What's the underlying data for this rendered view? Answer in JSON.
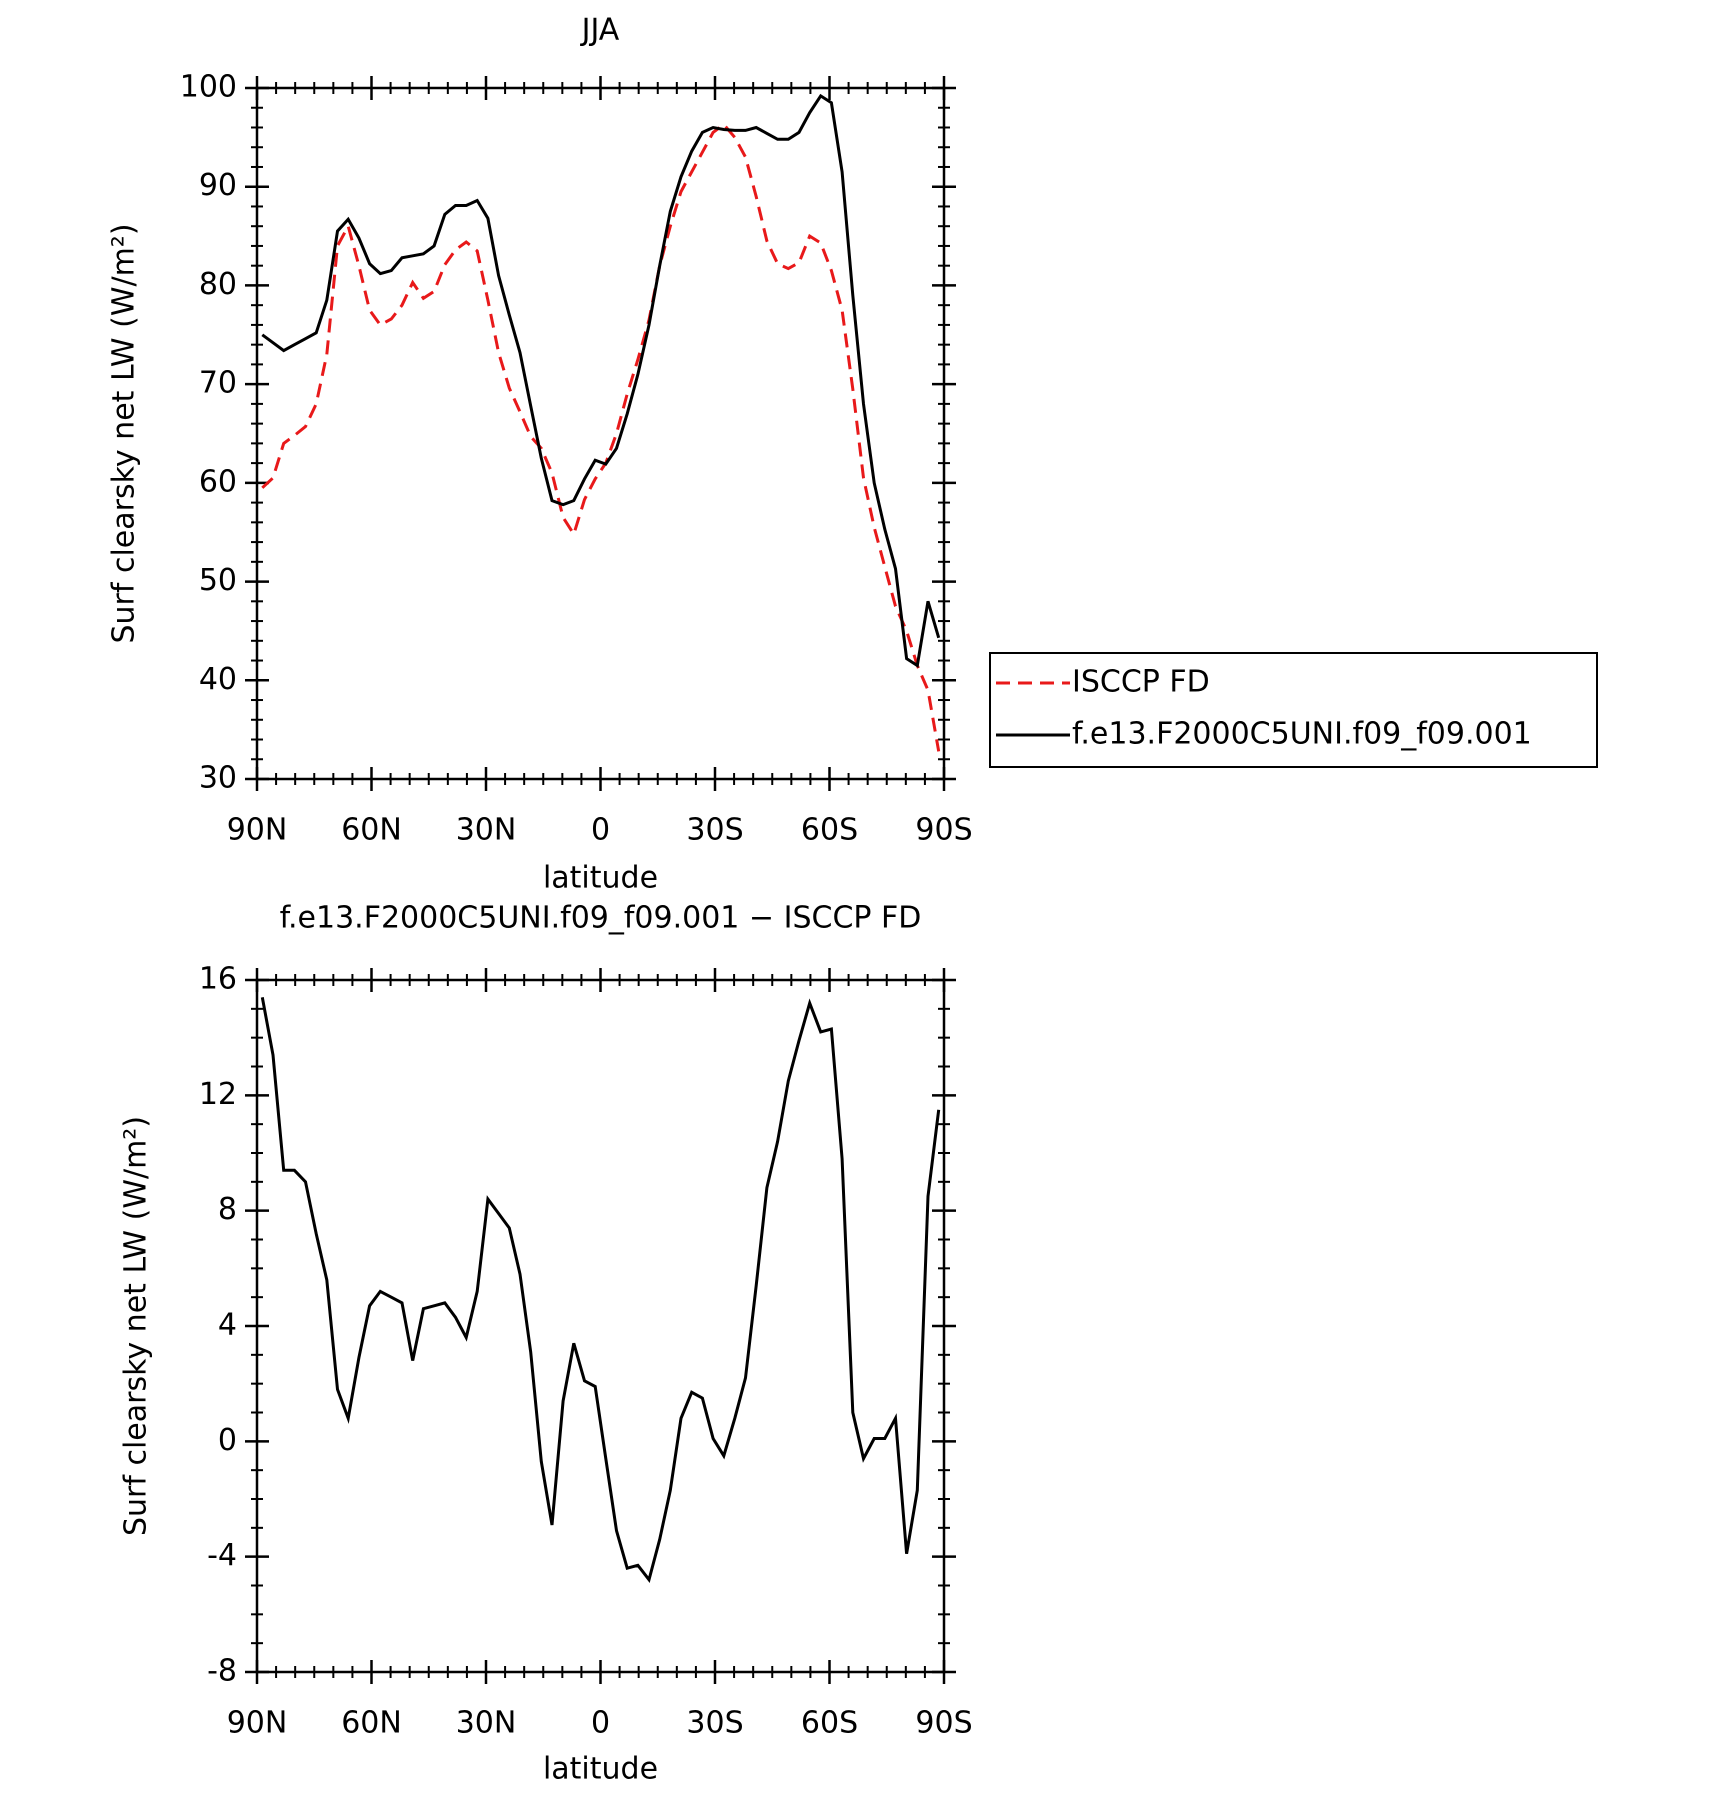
{
  "chart_data": [
    {
      "type": "line",
      "title": "JJA",
      "x_label": "latitude",
      "y_label": "Surf clearsky net LW (W/m²)",
      "x": [
        88.6,
        85.8,
        83.0,
        80.2,
        77.3,
        74.5,
        71.7,
        68.9,
        66.1,
        63.3,
        60.5,
        57.7,
        54.8,
        52.0,
        49.2,
        46.4,
        43.6,
        40.8,
        38.0,
        35.2,
        32.3,
        29.5,
        26.7,
        23.9,
        21.1,
        18.3,
        15.5,
        12.7,
        9.8,
        7.0,
        4.2,
        1.4,
        -1.4,
        -4.2,
        -7.0,
        -9.8,
        -12.7,
        -15.5,
        -18.3,
        -21.1,
        -23.9,
        -26.7,
        -29.5,
        -32.3,
        -35.2,
        -38.0,
        -40.8,
        -43.6,
        -46.4,
        -49.2,
        -52.0,
        -54.8,
        -57.7,
        -60.5,
        -63.3,
        -66.1,
        -68.9,
        -71.7,
        -74.5,
        -77.3,
        -80.2,
        -83.0,
        -85.8,
        -88.6
      ],
      "series": [
        {
          "name": "ISCCP FD",
          "color": "#e8191a",
          "style": "dashed",
          "values": [
            59.5,
            60.5,
            64.0,
            64.8,
            65.7,
            68.0,
            73.0,
            84.0,
            86.0,
            82.0,
            77.5,
            76.0,
            76.6,
            78.0,
            80.3,
            78.7,
            79.4,
            82.1,
            83.6,
            84.4,
            83.5,
            78.5,
            73.2,
            69.6,
            67.2,
            64.7,
            63.5,
            61.0,
            56.5,
            54.8,
            58.3,
            60.4,
            62.0,
            65.0,
            69.0,
            72.5,
            76.5,
            82.0,
            86.0,
            89.5,
            91.5,
            93.5,
            95.5,
            96.3,
            95.0,
            93.0,
            89.0,
            84.5,
            82.2,
            81.7,
            82.3,
            85.0,
            84.3,
            81.5,
            77.5,
            69.5,
            60.5,
            55.5,
            51.5,
            47.5,
            45.0,
            41.5,
            39.0,
            32.8
          ]
        },
        {
          "name": "f.e13.F2000C5UNI.f09_f09.001",
          "color": "#000000",
          "style": "solid",
          "values": [
            75.0,
            74.2,
            73.4,
            74.0,
            74.6,
            75.2,
            78.5,
            85.5,
            86.7,
            84.8,
            82.2,
            81.2,
            81.5,
            82.8,
            83.0,
            83.2,
            84.0,
            87.2,
            88.1,
            88.1,
            88.6,
            86.8,
            81.0,
            77.0,
            73.2,
            67.8,
            62.5,
            58.2,
            57.8,
            58.2,
            60.4,
            62.3,
            61.9,
            63.5,
            67.0,
            71.0,
            76.0,
            82.0,
            87.5,
            91.0,
            93.6,
            95.5,
            96.0,
            95.8,
            95.7,
            95.7,
            96.0,
            95.4,
            94.8,
            94.8,
            95.5,
            97.5,
            99.2,
            98.5,
            91.5,
            79.0,
            68.0,
            60.0,
            55.3,
            51.3,
            42.2,
            41.5,
            48.0,
            44.3
          ]
        }
      ],
      "xlim": [
        90,
        -90
      ],
      "xticks": [
        {
          "value": 90,
          "label": "90N"
        },
        {
          "value": 60,
          "label": "60N"
        },
        {
          "value": 30,
          "label": "30N"
        },
        0,
        {
          "value": -30,
          "label": "30S"
        },
        {
          "value": -60,
          "label": "60S"
        },
        {
          "value": -90,
          "label": "90S"
        }
      ],
      "ylim": [
        30,
        100
      ],
      "yticks": [
        30,
        40,
        50,
        60,
        70,
        80,
        90,
        100
      ],
      "legend": "right"
    },
    {
      "type": "line",
      "title": "f.e13.F2000C5UNI.f09_f09.001 − ISCCP FD",
      "x_label": "latitude",
      "y_label": "Surf clearsky net LW (W/m²)",
      "x": [
        88.6,
        85.8,
        83.0,
        80.2,
        77.3,
        74.5,
        71.7,
        68.9,
        66.1,
        63.3,
        60.5,
        57.7,
        54.8,
        52.0,
        49.2,
        46.4,
        43.6,
        40.8,
        38.0,
        35.2,
        32.3,
        29.5,
        26.7,
        23.9,
        21.1,
        18.3,
        15.5,
        12.7,
        9.8,
        7.0,
        4.2,
        1.4,
        -1.4,
        -4.2,
        -7.0,
        -9.8,
        -12.7,
        -15.5,
        -18.3,
        -21.1,
        -23.9,
        -26.7,
        -29.5,
        -32.3,
        -35.2,
        -38.0,
        -40.8,
        -43.6,
        -46.4,
        -49.2,
        -52.0,
        -54.8,
        -57.7,
        -60.5,
        -63.3,
        -66.1,
        -68.9,
        -71.7,
        -74.5,
        -77.3,
        -80.2,
        -83.0,
        -85.8,
        -88.6
      ],
      "color": "#000000",
      "values": [
        15.4,
        13.4,
        9.4,
        9.4,
        9.0,
        7.2,
        5.6,
        1.8,
        0.8,
        2.9,
        4.7,
        5.2,
        5.0,
        4.8,
        2.8,
        4.6,
        4.7,
        4.8,
        4.3,
        3.6,
        5.2,
        8.4,
        7.9,
        7.4,
        5.8,
        3.1,
        -0.7,
        -2.9,
        1.4,
        3.4,
        2.1,
        1.9,
        -0.6,
        -3.1,
        -4.4,
        -4.3,
        -4.8,
        -3.4,
        -1.7,
        0.8,
        1.7,
        1.5,
        0.1,
        -0.5,
        0.8,
        2.2,
        5.4,
        8.8,
        10.4,
        12.5,
        13.9,
        15.2,
        14.2,
        14.3,
        9.8,
        1.0,
        -0.6,
        0.1,
        0.1,
        0.8,
        -3.9,
        -1.7,
        8.5,
        11.5
      ],
      "xlim": [
        90,
        -90
      ],
      "xticks": [
        {
          "value": 90,
          "label": "90N"
        },
        {
          "value": 60,
          "label": "60N"
        },
        {
          "value": 30,
          "label": "30N"
        },
        0,
        {
          "value": -30,
          "label": "30S"
        },
        {
          "value": -60,
          "label": "60S"
        },
        {
          "value": -90,
          "label": "90S"
        }
      ],
      "ylim": [
        -8,
        16
      ],
      "yticks": [
        -8,
        -4,
        0,
        4,
        8,
        12,
        16
      ]
    }
  ]
}
